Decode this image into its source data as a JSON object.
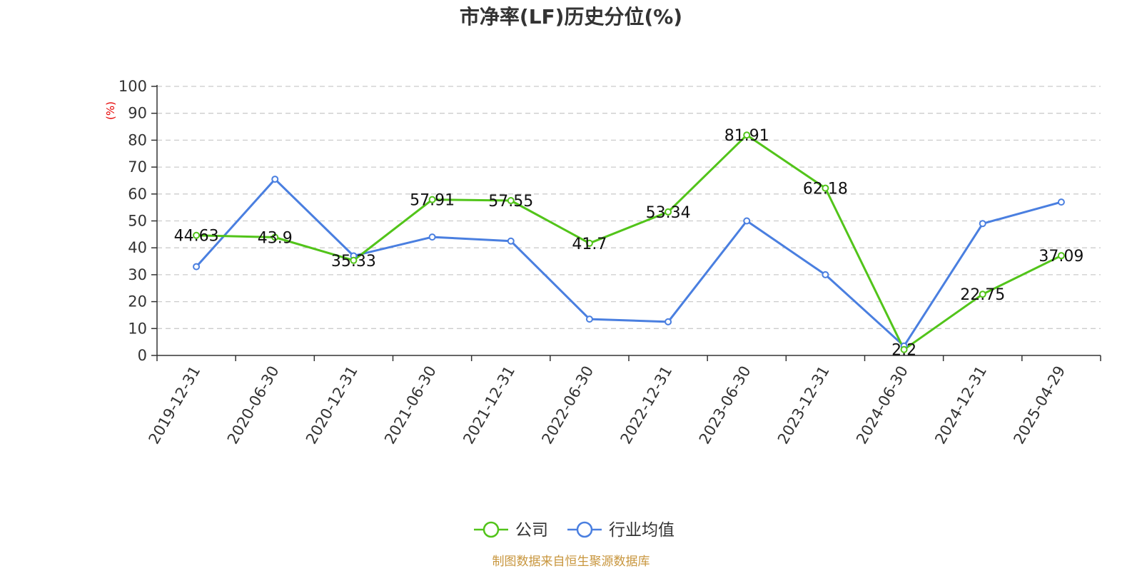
{
  "chart_data": {
    "type": "line",
    "title": "市净率(LF)历史分位(%)",
    "ylabel": "(%)",
    "xlabel": "",
    "categories": [
      "2019-12-31",
      "2020-06-30",
      "2020-12-31",
      "2021-06-30",
      "2021-12-31",
      "2022-06-30",
      "2022-12-31",
      "2023-06-30",
      "2023-12-31",
      "2024-06-30",
      "2024-12-31",
      "2025-04-29"
    ],
    "ylim": [
      0,
      100
    ],
    "yticks": [
      0,
      10,
      20,
      30,
      40,
      50,
      60,
      70,
      80,
      90,
      100
    ],
    "grid": true,
    "legend_position": "bottom",
    "series": [
      {
        "name": "公司",
        "color": "#52c41a",
        "values": [
          44.63,
          43.9,
          35.33,
          57.91,
          57.55,
          41.7,
          53.34,
          81.91,
          62.18,
          2.2,
          22.75,
          37.09
        ],
        "labels": [
          "44.63",
          "43.9",
          "35.33",
          "57.91",
          "57.55",
          "41.7",
          "53.34",
          "81.91",
          "62.18",
          "2.2",
          "22.75",
          "37.09"
        ]
      },
      {
        "name": "行业均值",
        "color": "#4a7fe0",
        "values": [
          33,
          65.5,
          37,
          44,
          42.5,
          13.5,
          12.5,
          50,
          30,
          3.5,
          49,
          57
        ]
      }
    ]
  },
  "source_text": "制图数据来自恒生聚源数据库",
  "colors": {
    "ylabel": "#e60000",
    "source": "#c8963e",
    "grid": "#cccccc",
    "axis": "#333333"
  }
}
